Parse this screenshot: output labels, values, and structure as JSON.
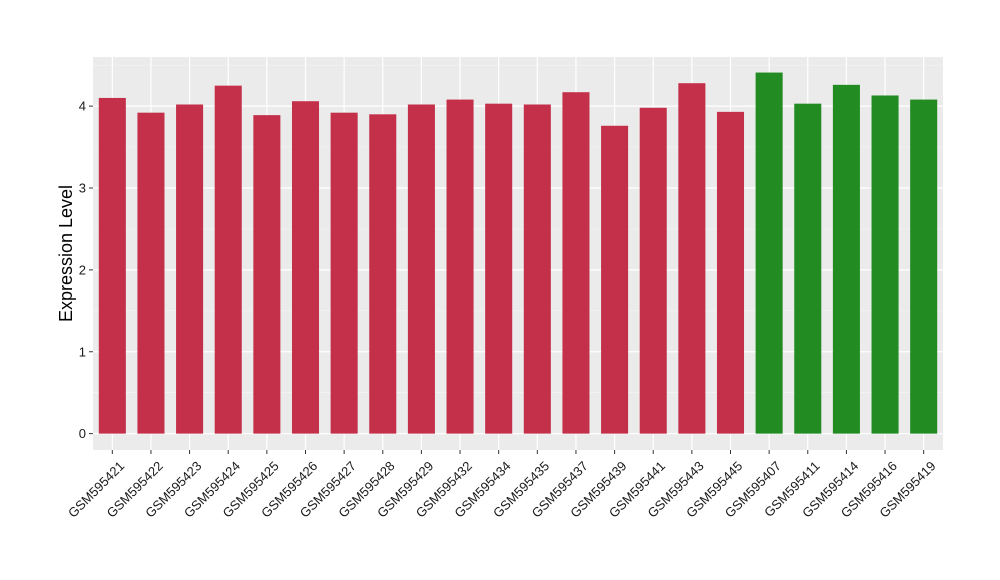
{
  "chart_data": {
    "type": "bar",
    "title": "",
    "xlabel": "",
    "ylabel": "Expression Level",
    "ylim": [
      -0.2,
      4.6
    ],
    "yticks": [
      0,
      1,
      2,
      3,
      4
    ],
    "grid": true,
    "legend": "none",
    "background": "#ebebeb",
    "categories": [
      "GSM595421",
      "GSM595422",
      "GSM595423",
      "GSM595424",
      "GSM595425",
      "GSM595426",
      "GSM595427",
      "GSM595428",
      "GSM595429",
      "GSM595432",
      "GSM595434",
      "GSM595435",
      "GSM595437",
      "GSM595439",
      "GSM595441",
      "GSM595443",
      "GSM595445",
      "GSM595407",
      "GSM595411",
      "GSM595414",
      "GSM595416",
      "GSM595419"
    ],
    "values": [
      4.1,
      3.92,
      4.02,
      4.25,
      3.89,
      4.06,
      3.92,
      3.9,
      4.02,
      4.08,
      4.03,
      4.02,
      4.17,
      3.76,
      3.98,
      4.28,
      3.93,
      4.41,
      4.03,
      4.26,
      4.13,
      4.08
    ],
    "colors": [
      "#c4304a",
      "#c4304a",
      "#c4304a",
      "#c4304a",
      "#c4304a",
      "#c4304a",
      "#c4304a",
      "#c4304a",
      "#c4304a",
      "#c4304a",
      "#c4304a",
      "#c4304a",
      "#c4304a",
      "#c4304a",
      "#c4304a",
      "#c4304a",
      "#c4304a",
      "#228b22",
      "#228b22",
      "#228b22",
      "#228b22",
      "#228b22"
    ]
  }
}
